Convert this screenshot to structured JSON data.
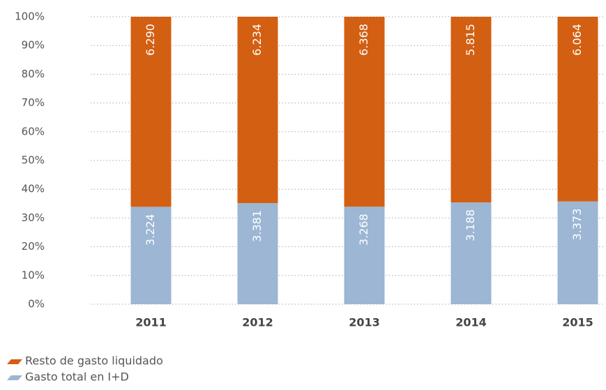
{
  "chart_data": {
    "type": "bar",
    "stacking": "percent",
    "categories": [
      "2011",
      "2012",
      "2013",
      "2014",
      "2015"
    ],
    "series": [
      {
        "name": "Gasto total en I+D",
        "color": "#9cb6d4",
        "values": [
          3224,
          3381,
          3268,
          3188,
          3373
        ],
        "value_labels": [
          "3.224",
          "3.381",
          "3.268",
          "3.188",
          "3.373"
        ]
      },
      {
        "name": "Resto de gasto liquidado",
        "color": "#d35f13",
        "values": [
          6290,
          6234,
          6368,
          5815,
          6064
        ],
        "value_labels": [
          "6.290",
          "6.234",
          "6.368",
          "5.815",
          "6.064"
        ]
      }
    ],
    "ylim": [
      0,
      100
    ],
    "yticks": [
      {
        "value": 0,
        "label": "0%"
      },
      {
        "value": 10,
        "label": "10%"
      },
      {
        "value": 20,
        "label": "20%"
      },
      {
        "value": 30,
        "label": "30%"
      },
      {
        "value": 40,
        "label": "40%"
      },
      {
        "value": 50,
        "label": "50%"
      },
      {
        "value": 60,
        "label": "60%"
      },
      {
        "value": 70,
        "label": "70%"
      },
      {
        "value": 80,
        "label": "80%"
      },
      {
        "value": 90,
        "label": "90%"
      },
      {
        "value": 100,
        "label": "100%"
      }
    ],
    "grid": true
  }
}
